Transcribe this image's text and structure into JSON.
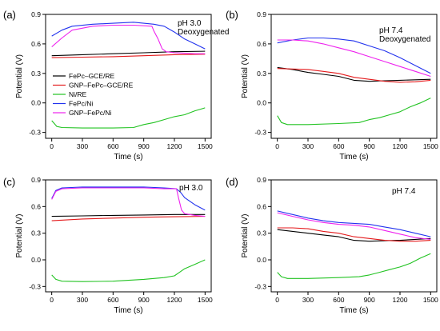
{
  "series_styles": [
    {
      "name": "FePc–GCE/RE",
      "color": "#000000"
    },
    {
      "name": "GNP–FePc–GCE/RE",
      "color": "#e41a1c"
    },
    {
      "name": "Ni/RE",
      "color": "#22c322"
    },
    {
      "name": "FePc/Ni",
      "color": "#2233ee"
    },
    {
      "name": "GNP–FePc/Ni",
      "color": "#ee22ee"
    }
  ],
  "chart_data": [
    {
      "panel": "(a)",
      "type": "line",
      "annotation": [
        "pH 3.0",
        "Deoxygenated"
      ],
      "xlabel": "Time (s)",
      "ylabel": "Potential (V)",
      "xlim": [
        -60,
        1560
      ],
      "ylim": [
        -0.36,
        0.9
      ],
      "xticks": [
        0,
        300,
        600,
        900,
        1200,
        1500
      ],
      "yticks": [
        -0.3,
        0.0,
        0.3,
        0.6,
        0.9
      ],
      "legend": "center-left",
      "series": [
        {
          "name": "FePc–GCE/RE",
          "x": [
            0,
            300,
            600,
            900,
            1200,
            1500
          ],
          "y": [
            0.48,
            0.49,
            0.5,
            0.51,
            0.52,
            0.525
          ]
        },
        {
          "name": "GNP–FePc–GCE/RE",
          "x": [
            0,
            300,
            600,
            900,
            1200,
            1500
          ],
          "y": [
            0.46,
            0.465,
            0.47,
            0.48,
            0.49,
            0.495
          ]
        },
        {
          "name": "Ni/RE",
          "x": [
            0,
            50,
            100,
            300,
            600,
            800,
            900,
            1000,
            1100,
            1200,
            1300,
            1400,
            1500
          ],
          "y": [
            -0.18,
            -0.24,
            -0.25,
            -0.255,
            -0.255,
            -0.25,
            -0.22,
            -0.2,
            -0.17,
            -0.14,
            -0.12,
            -0.08,
            -0.05
          ]
        },
        {
          "name": "FePc/Ni",
          "x": [
            0,
            100,
            200,
            400,
            600,
            800,
            1000,
            1100,
            1200,
            1300,
            1400,
            1500
          ],
          "y": [
            0.68,
            0.74,
            0.78,
            0.8,
            0.81,
            0.82,
            0.8,
            0.78,
            0.72,
            0.65,
            0.6,
            0.55
          ]
        },
        {
          "name": "GNP–FePc/Ni",
          "x": [
            0,
            100,
            200,
            400,
            600,
            800,
            980,
            1000,
            1040,
            1080,
            1120,
            1200,
            1300,
            1400,
            1500
          ],
          "y": [
            0.57,
            0.66,
            0.74,
            0.78,
            0.79,
            0.79,
            0.78,
            0.73,
            0.65,
            0.55,
            0.52,
            0.51,
            0.505,
            0.5,
            0.5
          ]
        }
      ]
    },
    {
      "panel": "(b)",
      "type": "line",
      "annotation": [
        "pH 7.4",
        "Deoxygenated"
      ],
      "xlabel": "Time (s)",
      "ylabel": "Potential (V)",
      "xlim": [
        -60,
        1560
      ],
      "ylim": [
        -0.36,
        0.9
      ],
      "xticks": [
        0,
        300,
        600,
        900,
        1200,
        1500
      ],
      "yticks": [
        -0.3,
        0.0,
        0.3,
        0.6,
        0.9
      ],
      "series": [
        {
          "name": "FePc–GCE/RE",
          "x": [
            0,
            150,
            300,
            450,
            600,
            750,
            900,
            1050,
            1200,
            1350,
            1500
          ],
          "y": [
            0.36,
            0.34,
            0.31,
            0.29,
            0.27,
            0.23,
            0.22,
            0.225,
            0.23,
            0.235,
            0.24
          ]
        },
        {
          "name": "GNP–FePc–GCE/RE",
          "x": [
            0,
            150,
            300,
            450,
            600,
            750,
            900,
            1050,
            1200,
            1350,
            1500
          ],
          "y": [
            0.35,
            0.345,
            0.34,
            0.32,
            0.3,
            0.26,
            0.24,
            0.22,
            0.21,
            0.215,
            0.23
          ]
        },
        {
          "name": "Ni/RE",
          "x": [
            0,
            40,
            100,
            300,
            600,
            800,
            900,
            1000,
            1100,
            1200,
            1300,
            1400,
            1500
          ],
          "y": [
            -0.13,
            -0.2,
            -0.22,
            -0.22,
            -0.21,
            -0.2,
            -0.17,
            -0.15,
            -0.12,
            -0.09,
            -0.04,
            0.0,
            0.05
          ]
        },
        {
          "name": "FePc/Ni",
          "x": [
            0,
            150,
            300,
            450,
            600,
            750,
            900,
            1050,
            1200,
            1350,
            1500
          ],
          "y": [
            0.61,
            0.64,
            0.66,
            0.66,
            0.65,
            0.63,
            0.58,
            0.53,
            0.46,
            0.38,
            0.3
          ]
        },
        {
          "name": "GNP–FePc/Ni",
          "x": [
            0,
            150,
            300,
            450,
            600,
            750,
            900,
            1050,
            1200,
            1350,
            1500
          ],
          "y": [
            0.64,
            0.64,
            0.63,
            0.6,
            0.56,
            0.52,
            0.47,
            0.42,
            0.37,
            0.32,
            0.27
          ]
        }
      ]
    },
    {
      "panel": "(c)",
      "type": "line",
      "annotation": [
        "pH 3.0"
      ],
      "xlabel": "Time (s)",
      "ylabel": "Potential (V)",
      "xlim": [
        -60,
        1560
      ],
      "ylim": [
        -0.36,
        0.9
      ],
      "xticks": [
        0,
        300,
        600,
        900,
        1200,
        1500
      ],
      "yticks": [
        -0.3,
        0.0,
        0.3,
        0.6,
        0.9
      ],
      "series": [
        {
          "name": "FePc–GCE/RE",
          "x": [
            0,
            300,
            600,
            900,
            1200,
            1500
          ],
          "y": [
            0.49,
            0.495,
            0.5,
            0.505,
            0.51,
            0.51
          ]
        },
        {
          "name": "GNP–FePc–GCE/RE",
          "x": [
            0,
            300,
            600,
            900,
            1200,
            1500
          ],
          "y": [
            0.44,
            0.46,
            0.47,
            0.48,
            0.485,
            0.49
          ]
        },
        {
          "name": "Ni/RE",
          "x": [
            0,
            40,
            100,
            300,
            600,
            900,
            1100,
            1200,
            1250,
            1300,
            1400,
            1500
          ],
          "y": [
            -0.17,
            -0.22,
            -0.24,
            -0.245,
            -0.24,
            -0.22,
            -0.2,
            -0.18,
            -0.14,
            -0.1,
            -0.05,
            0.0
          ]
        },
        {
          "name": "FePc/Ni",
          "x": [
            0,
            40,
            100,
            300,
            600,
            900,
            1100,
            1220,
            1260,
            1300,
            1400,
            1500
          ],
          "y": [
            0.69,
            0.78,
            0.81,
            0.82,
            0.82,
            0.82,
            0.81,
            0.8,
            0.76,
            0.7,
            0.62,
            0.56
          ]
        },
        {
          "name": "GNP–FePc/Ni",
          "x": [
            0,
            40,
            100,
            300,
            600,
            900,
            1100,
            1220,
            1240,
            1270,
            1300,
            1400,
            1500
          ],
          "y": [
            0.68,
            0.77,
            0.8,
            0.81,
            0.81,
            0.81,
            0.8,
            0.8,
            0.7,
            0.56,
            0.52,
            0.5,
            0.49
          ]
        }
      ]
    },
    {
      "panel": "(d)",
      "type": "line",
      "annotation": [
        "pH 7.4"
      ],
      "xlabel": "Time (s)",
      "ylabel": "Potential (V)",
      "xlim": [
        -60,
        1560
      ],
      "ylim": [
        -0.36,
        0.9
      ],
      "xticks": [
        0,
        300,
        600,
        900,
        1200,
        1500
      ],
      "yticks": [
        -0.3,
        0.0,
        0.3,
        0.6,
        0.9
      ],
      "series": [
        {
          "name": "FePc–GCE/RE",
          "x": [
            0,
            150,
            300,
            450,
            600,
            750,
            900,
            1050,
            1200,
            1350,
            1500
          ],
          "y": [
            0.34,
            0.32,
            0.3,
            0.28,
            0.26,
            0.22,
            0.21,
            0.215,
            0.22,
            0.23,
            0.24
          ]
        },
        {
          "name": "GNP–FePc–GCE/RE",
          "x": [
            0,
            150,
            300,
            450,
            600,
            750,
            900,
            1050,
            1200,
            1350,
            1500
          ],
          "y": [
            0.36,
            0.36,
            0.35,
            0.32,
            0.3,
            0.26,
            0.24,
            0.22,
            0.21,
            0.21,
            0.22
          ]
        },
        {
          "name": "Ni/RE",
          "x": [
            0,
            40,
            100,
            300,
            600,
            800,
            900,
            1000,
            1100,
            1200,
            1300,
            1400,
            1500
          ],
          "y": [
            -0.14,
            -0.19,
            -0.21,
            -0.21,
            -0.2,
            -0.19,
            -0.17,
            -0.14,
            -0.11,
            -0.08,
            -0.04,
            0.02,
            0.07
          ]
        },
        {
          "name": "FePc/Ni",
          "x": [
            0,
            150,
            300,
            450,
            600,
            750,
            900,
            1050,
            1200,
            1350,
            1500
          ],
          "y": [
            0.55,
            0.51,
            0.47,
            0.44,
            0.42,
            0.41,
            0.4,
            0.37,
            0.34,
            0.3,
            0.26
          ]
        },
        {
          "name": "GNP–FePc/Ni",
          "x": [
            0,
            150,
            300,
            450,
            600,
            750,
            900,
            1050,
            1200,
            1350,
            1500
          ],
          "y": [
            0.53,
            0.49,
            0.45,
            0.42,
            0.4,
            0.39,
            0.37,
            0.33,
            0.29,
            0.25,
            0.23
          ]
        }
      ]
    }
  ]
}
